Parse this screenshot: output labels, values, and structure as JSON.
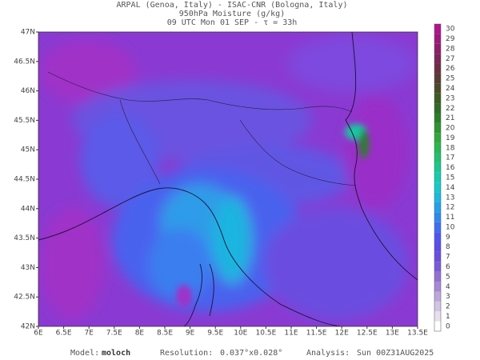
{
  "header": {
    "lines": [
      "ARPAL (Genoa, Italy)  -  ISAC-CNR (Bologna, Italy)",
      "950hPa Moisture (g/kg)",
      "09 UTC Mon 01 SEP  -  τ = 33h"
    ]
  },
  "map": {
    "lon_ticks": [
      {
        "value": 6,
        "label": "6E"
      },
      {
        "value": 6.5,
        "label": "6.5E"
      },
      {
        "value": 7,
        "label": "7E"
      },
      {
        "value": 7.5,
        "label": "7.5E"
      },
      {
        "value": 8,
        "label": "8E"
      },
      {
        "value": 8.5,
        "label": "8.5E"
      },
      {
        "value": 9,
        "label": "9E"
      },
      {
        "value": 9.5,
        "label": "9.5E"
      },
      {
        "value": 10,
        "label": "10E"
      },
      {
        "value": 10.5,
        "label": "10.5E"
      },
      {
        "value": 11,
        "label": "11E"
      },
      {
        "value": 11.5,
        "label": "11.5E"
      },
      {
        "value": 12,
        "label": "12E"
      },
      {
        "value": 12.5,
        "label": "12.5E"
      },
      {
        "value": 13,
        "label": "13E"
      },
      {
        "value": 13.5,
        "label": "13.5E"
      }
    ],
    "lat_ticks": [
      {
        "value": 42,
        "label": "42N"
      },
      {
        "value": 42.5,
        "label": "42.5N"
      },
      {
        "value": 43,
        "label": "43N"
      },
      {
        "value": 43.5,
        "label": "43.5N"
      },
      {
        "value": 44,
        "label": "44N"
      },
      {
        "value": 44.5,
        "label": "44.5N"
      },
      {
        "value": 45,
        "label": "45N"
      },
      {
        "value": 45.5,
        "label": "45.5N"
      },
      {
        "value": 46,
        "label": "46N"
      },
      {
        "value": 46.5,
        "label": "46.5N"
      },
      {
        "value": 47,
        "label": "47N"
      }
    ]
  },
  "colorbar": {
    "ticks": [
      0,
      1,
      2,
      3,
      4,
      5,
      6,
      7,
      8,
      9,
      10,
      11,
      12,
      13,
      14,
      15,
      16,
      17,
      18,
      19,
      20,
      21,
      22,
      23,
      24,
      25,
      26,
      27,
      28,
      29,
      30
    ],
    "colors": [
      "#ffffff",
      "#e6e0ee",
      "#d2c4e4",
      "#bca6dc",
      "#a788d6",
      "#9370d4",
      "#7a5ad6",
      "#6a4ee0",
      "#5c4cea",
      "#4e56f0",
      "#3e6ef2",
      "#2f88f0",
      "#24a0ea",
      "#1cb8e0",
      "#16c8cc",
      "#14ccb0",
      "#18c890",
      "#20c070",
      "#28b850",
      "#30a83c",
      "#2e9430",
      "#2a8028",
      "#306c24",
      "#3c5c22",
      "#4a4c28",
      "#5a3c34",
      "#6c2e44",
      "#7e2456",
      "#901c6a",
      "#a0187e",
      "#b01490"
    ]
  },
  "footer": {
    "model_label": "Model:",
    "model": "moloch",
    "resolution_label": "Resolution:",
    "resolution": "0.037°x0.028°",
    "analysis_label": "Analysis:",
    "analysis": "Sun 00Z31AUG2025"
  }
}
